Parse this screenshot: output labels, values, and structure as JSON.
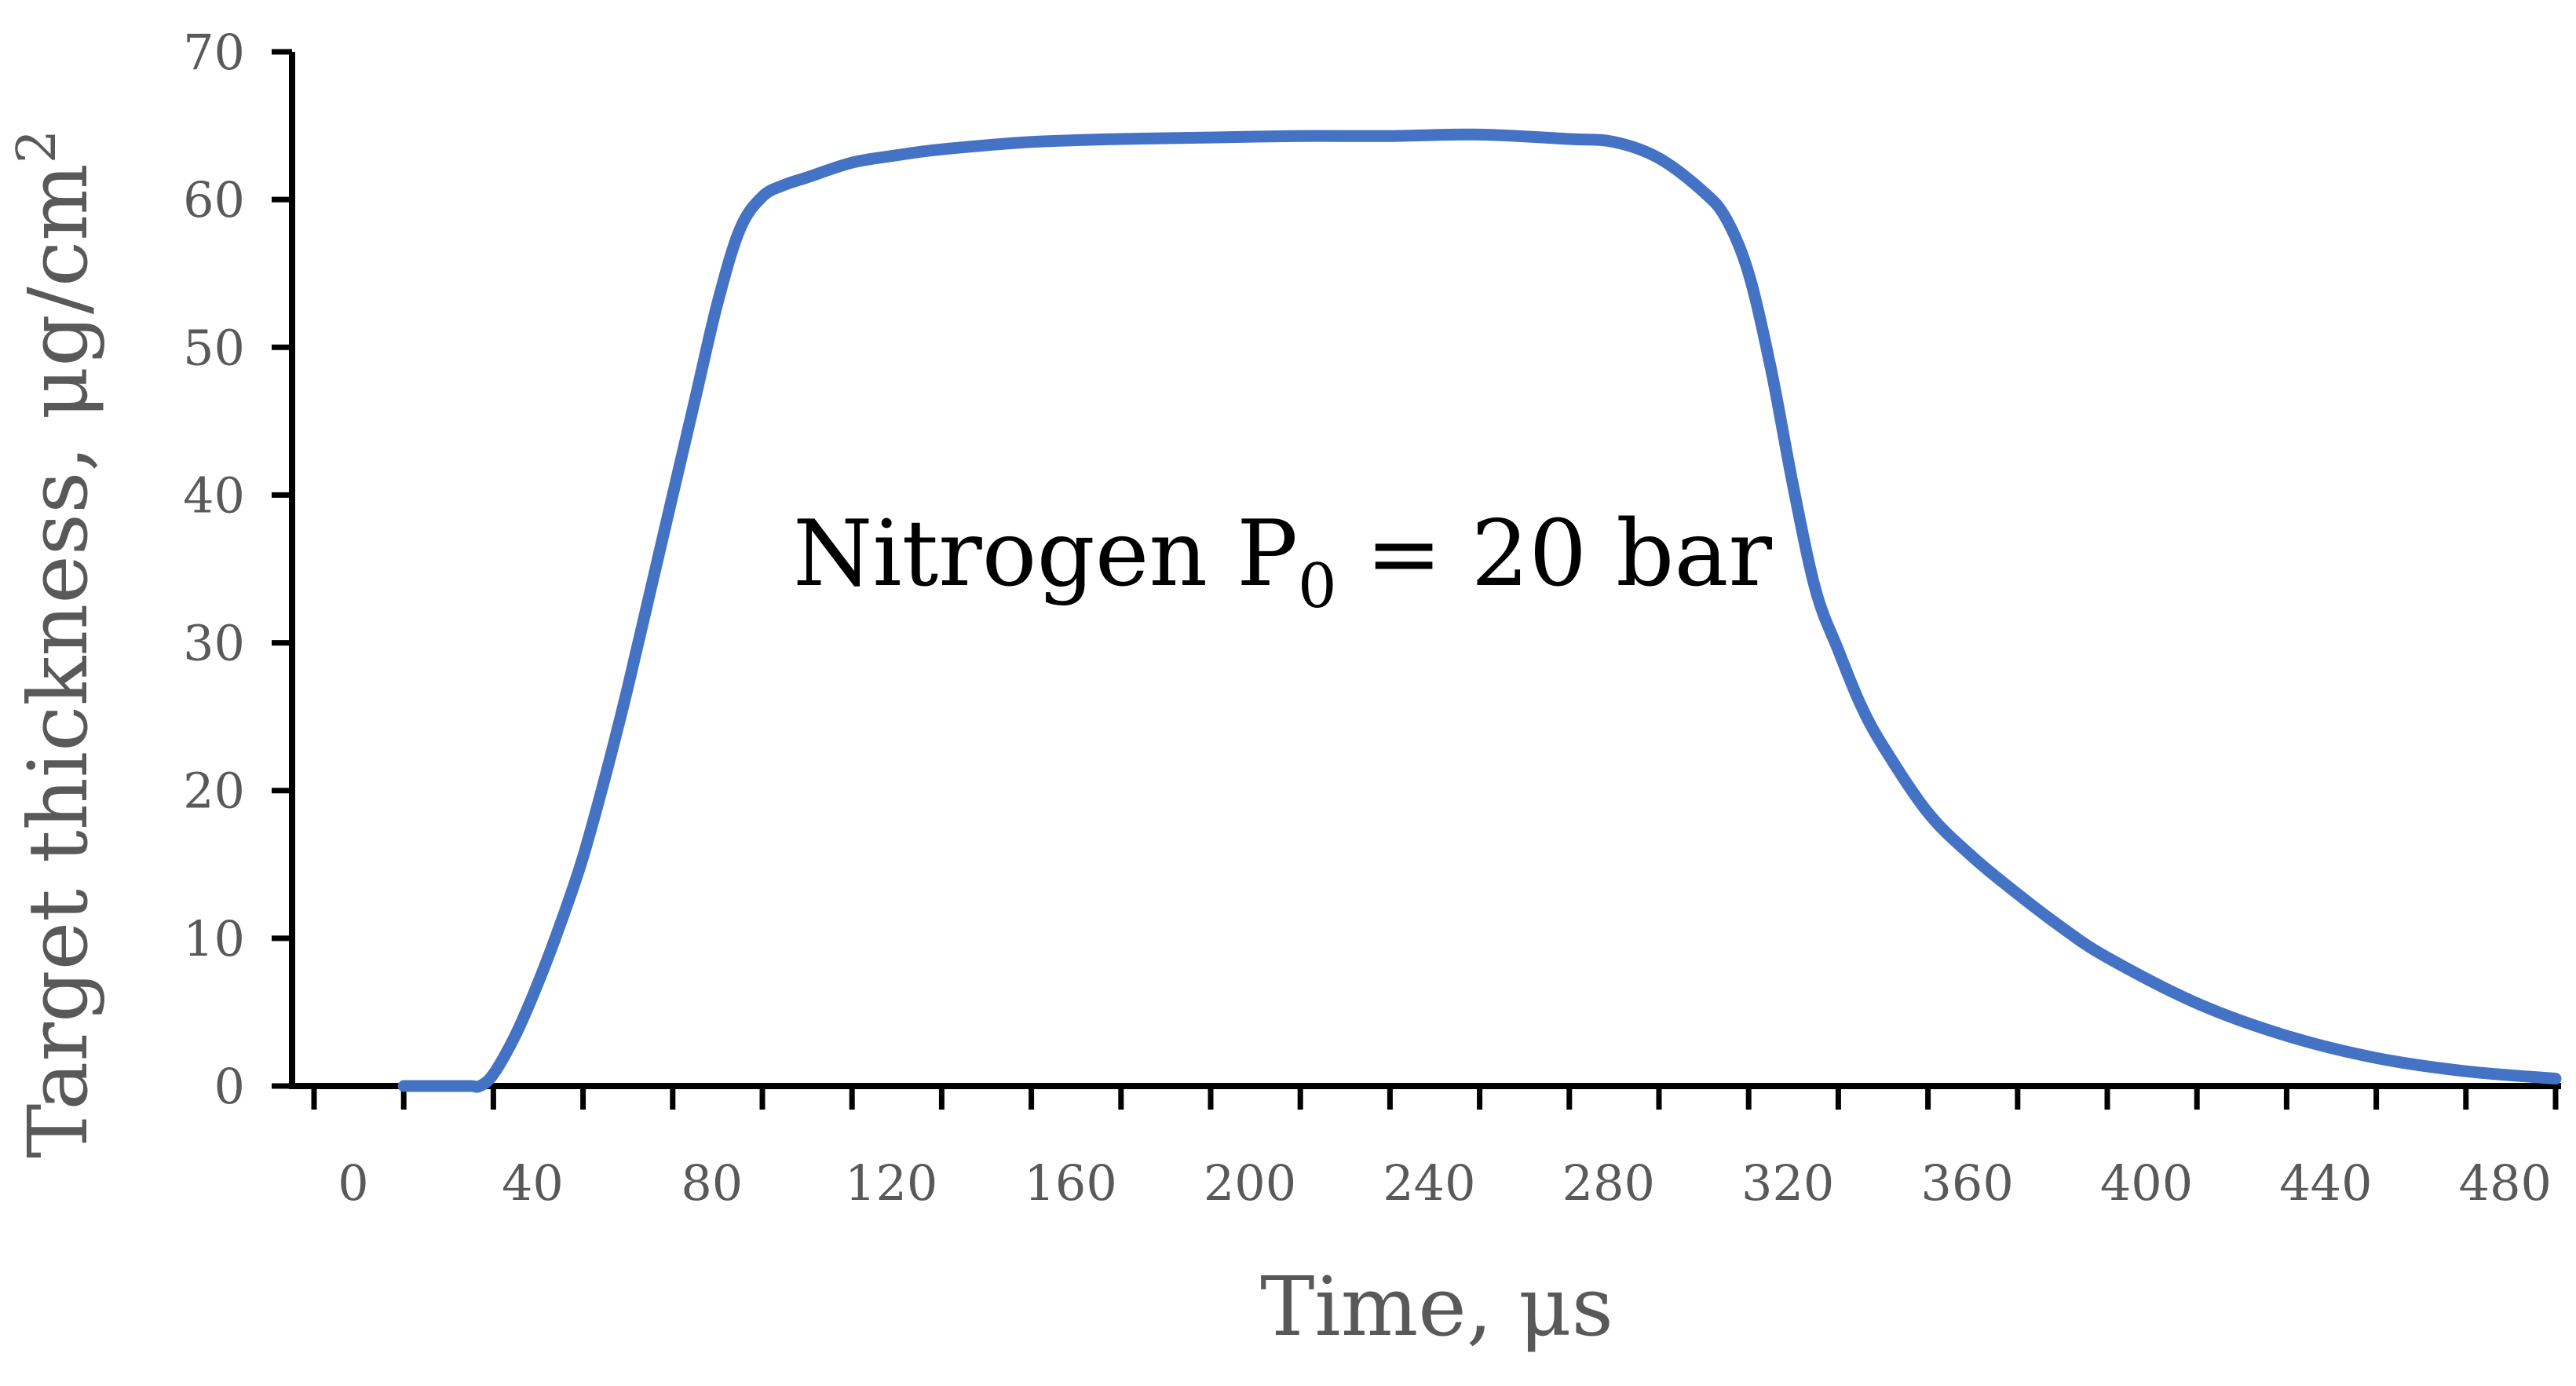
{
  "chart_data": {
    "type": "line",
    "xlabel": "Time,  μs",
    "ylabel_main": "Target thickness, μg/cm",
    "ylabel_sup": "2",
    "annotation": {
      "main": "Nitrogen P",
      "sub": "0",
      "tail": " = 20 bar"
    },
    "xlim": [
      0,
      500
    ],
    "ylim": [
      0,
      70
    ],
    "x_tick_values": [
      0,
      40,
      80,
      120,
      160,
      200,
      240,
      280,
      320,
      360,
      400,
      440,
      480
    ],
    "x_minor_step": 20,
    "y_tick_values": [
      0,
      10,
      20,
      30,
      40,
      50,
      60,
      70
    ],
    "grid": false,
    "line_color": "#4472C4",
    "series": [
      {
        "x": [
          20,
          25,
          30,
          35,
          37,
          40,
          45,
          50,
          55,
          60,
          65,
          70,
          75,
          80,
          85,
          90,
          95,
          100,
          105,
          110,
          120,
          130,
          140,
          160,
          180,
          200,
          220,
          240,
          260,
          280,
          290,
          300,
          310,
          315,
          320,
          325,
          330,
          335,
          340,
          345,
          350,
          360,
          370,
          380,
          390,
          400,
          420,
          440,
          460,
          480,
          500
        ],
        "y": [
          0,
          0,
          0,
          0,
          0,
          0.8,
          3.5,
          7,
          11,
          15.5,
          21,
          27,
          33.5,
          40,
          46.5,
          53,
          58,
          60.2,
          61,
          61.5,
          62.5,
          63,
          63.4,
          63.9,
          64.1,
          64.2,
          64.3,
          64.3,
          64.4,
          64.1,
          63.9,
          62.8,
          60.5,
          58.7,
          55,
          48.5,
          40.5,
          33.5,
          29.5,
          25.8,
          23,
          18.5,
          15.5,
          13,
          10.7,
          8.7,
          5.6,
          3.4,
          1.9,
          1,
          0.5
        ]
      }
    ]
  }
}
